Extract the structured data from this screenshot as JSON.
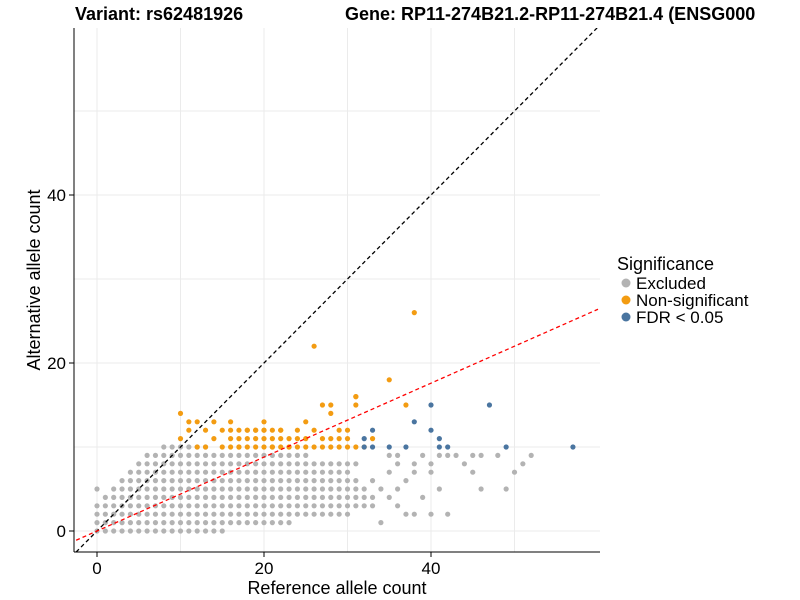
{
  "chart_data": {
    "type": "scatter",
    "title_left": "Variant: rs62481926",
    "title_right": "Gene: RP11-274B21.2-RP11-274B21.4 (ENSG000",
    "xlabel": "Reference allele count",
    "ylabel": "Alternative allele count",
    "xlim": [
      -2.5,
      60
    ],
    "ylim": [
      -2.5,
      60
    ],
    "xticks": [
      0,
      20,
      40
    ],
    "yticks": [
      0,
      20,
      40
    ],
    "legend": {
      "title": "Significance",
      "position": "right",
      "entries": [
        {
          "label": "Excluded",
          "color": "#b3b3b3"
        },
        {
          "label": "Non-significant",
          "color": "#f39c12"
        },
        {
          "label": "FDR < 0.05",
          "color": "#4a75a0"
        }
      ]
    },
    "reference_lines": [
      {
        "name": "identity",
        "slope": 1,
        "intercept": 0,
        "color": "#000000",
        "dash": "dashed"
      },
      {
        "name": "fit",
        "slope": 0.44,
        "intercept": 0,
        "color": "#ff0000",
        "dash": "dashed"
      }
    ],
    "series": [
      {
        "name": "Non-significant",
        "color": "#f39c12",
        "x": [
          10,
          11,
          12,
          13,
          14,
          14,
          15,
          15,
          16,
          16,
          16,
          17,
          17,
          17,
          18,
          18,
          18,
          19,
          19,
          19,
          20,
          20,
          20,
          20,
          21,
          21,
          21,
          22,
          22,
          22,
          23,
          23,
          24,
          24,
          25,
          25,
          26,
          26,
          27,
          27,
          27,
          28,
          28,
          28,
          29,
          29,
          30,
          30,
          31,
          31,
          12,
          13,
          16,
          18,
          19,
          20,
          22,
          24,
          25,
          30,
          31,
          32,
          10,
          11,
          17,
          21,
          23,
          26,
          28,
          29,
          31,
          33,
          35,
          37,
          38
        ],
        "y": [
          14,
          13,
          13,
          12,
          11,
          13,
          10,
          12,
          11,
          13,
          10,
          11,
          12,
          10,
          12,
          11,
          10,
          11,
          12,
          10,
          10,
          11,
          12,
          13,
          11,
          12,
          10,
          10,
          11,
          12,
          11,
          10,
          10,
          12,
          10,
          11,
          10,
          12,
          10,
          11,
          15,
          11,
          10,
          14,
          11,
          10,
          10,
          12,
          10,
          16,
          10,
          10,
          12,
          12,
          12,
          12,
          12,
          11,
          13,
          11,
          16,
          10,
          11,
          12,
          10,
          10,
          10,
          22,
          15,
          12,
          15,
          11,
          18,
          15,
          26
        ]
      },
      {
        "name": "FDR < 0.05",
        "color": "#4a75a0",
        "x": [
          32,
          32,
          33,
          33,
          35,
          37,
          38,
          40,
          40,
          41,
          41,
          42,
          47,
          49,
          57
        ],
        "y": [
          11,
          10,
          10,
          12,
          10,
          10,
          13,
          15,
          12,
          11,
          10,
          10,
          15,
          10,
          10
        ]
      }
    ],
    "excluded_points": {
      "description": "dense grey grid of integer counts below the significant points",
      "color": "#b3b3b3",
      "extra": [
        [
          0,
          5
        ],
        [
          2,
          1
        ],
        [
          3,
          2
        ],
        [
          4,
          3
        ],
        [
          36,
          8
        ],
        [
          36,
          9
        ],
        [
          38,
          7
        ],
        [
          38,
          8
        ],
        [
          39,
          4
        ],
        [
          40,
          8
        ],
        [
          40,
          7
        ],
        [
          41,
          9
        ],
        [
          41,
          5
        ],
        [
          42,
          2
        ],
        [
          43,
          9
        ],
        [
          45,
          9
        ],
        [
          45,
          7
        ],
        [
          46,
          9
        ],
        [
          46,
          5
        ],
        [
          48,
          9
        ],
        [
          49,
          5
        ],
        [
          50,
          7
        ],
        [
          51,
          8
        ],
        [
          52,
          9
        ],
        [
          37,
          2
        ],
        [
          38,
          2
        ],
        [
          40,
          2
        ],
        [
          34,
          1
        ],
        [
          33,
          6
        ],
        [
          34,
          5
        ],
        [
          35,
          4
        ],
        [
          36,
          3
        ],
        [
          32,
          4
        ],
        [
          35,
          7
        ],
        [
          37,
          6
        ],
        [
          39,
          9
        ],
        [
          42,
          9
        ],
        [
          44,
          8
        ],
        [
          35,
          9
        ],
        [
          36,
          5
        ]
      ]
    }
  }
}
